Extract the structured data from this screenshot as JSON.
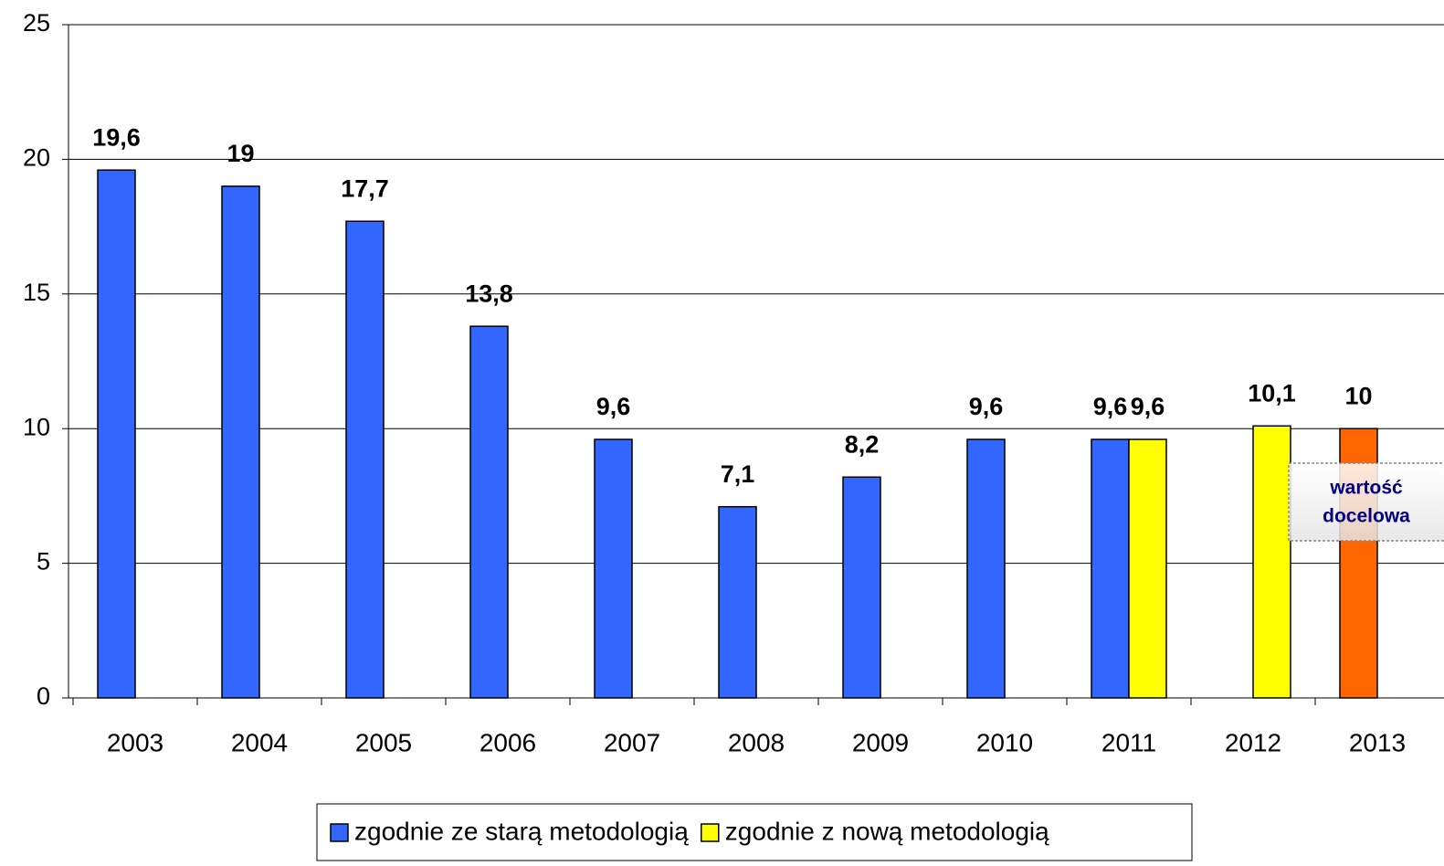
{
  "chart_data": {
    "type": "bar",
    "categories": [
      "2003",
      "2004",
      "2005",
      "2006",
      "2007",
      "2008",
      "2009",
      "2010",
      "2011",
      "2012",
      "2013"
    ],
    "series": [
      {
        "name": "zgodnie ze starą metodologią",
        "color": "#3366ff",
        "values": [
          19.6,
          19,
          17.7,
          13.8,
          9.6,
          7.1,
          8.2,
          9.6,
          9.6,
          null,
          null
        ],
        "value_labels": [
          "19,6",
          "19",
          "17,7",
          "13,8",
          "9,6",
          "7,1",
          "8,2",
          "9,6",
          "9,6",
          null,
          null
        ]
      },
      {
        "name": "zgodnie z nową metodologią",
        "color": "#ffff00",
        "values": [
          null,
          null,
          null,
          null,
          null,
          null,
          null,
          null,
          9.6,
          10.1,
          null
        ],
        "value_labels": [
          null,
          null,
          null,
          null,
          null,
          null,
          null,
          null,
          "9,6",
          "10,1",
          null
        ]
      },
      {
        "color": "#ff6600",
        "values": [
          null,
          null,
          null,
          null,
          null,
          null,
          null,
          null,
          null,
          null,
          10
        ],
        "value_labels": [
          null,
          null,
          null,
          null,
          null,
          null,
          null,
          null,
          null,
          null,
          "10"
        ]
      }
    ],
    "annotation": [
      "wartość",
      "docelowa"
    ],
    "ylim": [
      0,
      25
    ],
    "yticks": [
      0,
      5,
      10,
      15,
      20,
      25
    ],
    "grid": true
  }
}
